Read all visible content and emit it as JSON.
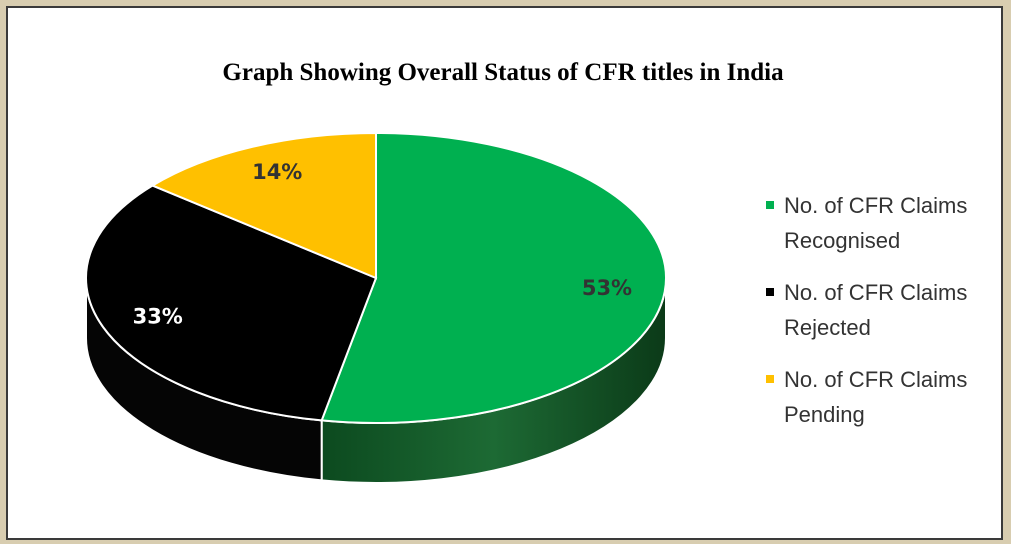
{
  "chart_data": {
    "type": "pie3d",
    "title": "Graph Showing Overall Status of CFR titles in India",
    "categories": [
      "No. of CFR Claims Recognised",
      "No. of CFR Claims Rejected",
      "No. of CFR Claims Pending"
    ],
    "values": [
      53,
      33,
      14
    ],
    "value_labels": [
      "53%",
      "33%",
      "14%"
    ],
    "colors": [
      "#00b050",
      "#000000",
      "#ffc000"
    ],
    "legend": "right"
  }
}
